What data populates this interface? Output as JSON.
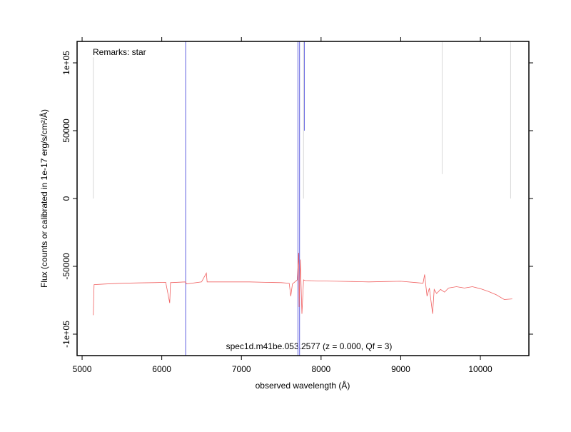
{
  "chart_data": {
    "type": "line",
    "xlabel": "observed wavelength (Å)",
    "ylabel": "Flux (counts or calibrated in 1e-17 erg/s/cm²/Å)",
    "remark": "Remarks: star",
    "annotation": "spec1d.m41be.053.2577 (z = 0.000, Qf = 3)",
    "xlim": [
      4937,
      10609
    ],
    "ylim": [
      -115800,
      115800
    ],
    "xticks": [
      5000,
      6000,
      7000,
      8000,
      9000,
      10000
    ],
    "yticks": [
      {
        "value": -100000,
        "label": "-1e+05"
      },
      -50000,
      0,
      50000,
      {
        "value": 100000,
        "label": "1e+05"
      }
    ],
    "x": [
      5140,
      5150,
      5300,
      5500,
      5700,
      5900,
      6050,
      6100,
      6110,
      6300,
      6310,
      6500,
      6560,
      6570,
      6700,
      6900,
      7100,
      7300,
      7500,
      7600,
      7620,
      7640,
      7700,
      7720,
      7725,
      7740,
      7760,
      7780,
      7800,
      8000,
      8200,
      8400,
      8600,
      8800,
      9000,
      9200,
      9280,
      9300,
      9330,
      9360,
      9400,
      9420,
      9450,
      9500,
      9550,
      9600,
      9700,
      9800,
      9900,
      10000,
      10100,
      10200,
      10300,
      10400
    ],
    "series": [
      {
        "color": "#f06060",
        "values": [
          -86000,
          -63500,
          -63000,
          -62500,
          -62200,
          -62000,
          -61800,
          -77000,
          -62000,
          -61500,
          -63000,
          -61500,
          -55000,
          -61500,
          -61500,
          -61500,
          -61500,
          -61800,
          -62000,
          -62500,
          -72000,
          -63000,
          -60000,
          -40000,
          -80000,
          -45000,
          -85000,
          -60000,
          -60500,
          -60800,
          -61000,
          -61200,
          -61500,
          -61200,
          -61000,
          -62000,
          -62500,
          -56000,
          -72000,
          -66000,
          -85000,
          -67000,
          -70000,
          -67000,
          -69000,
          -66000,
          -65000,
          -66000,
          -65000,
          -66500,
          -68500,
          -71000,
          -74500,
          -74000
        ]
      }
    ],
    "segments": [
      {
        "color": "#6060e0",
        "x": [
          6300,
          7710,
          7730,
          7790
        ],
        "ymin": [
          -115800,
          -115800,
          -115800,
          50000
        ],
        "ymax": [
          115800,
          115800,
          115800,
          115800
        ]
      },
      {
        "color": "#d8d8d8",
        "x": [
          5140,
          7780,
          9520,
          10380
        ],
        "ymin": [
          0,
          0,
          18000,
          0
        ],
        "ymax": [
          104000,
          115800,
          115800,
          115800
        ]
      }
    ]
  }
}
